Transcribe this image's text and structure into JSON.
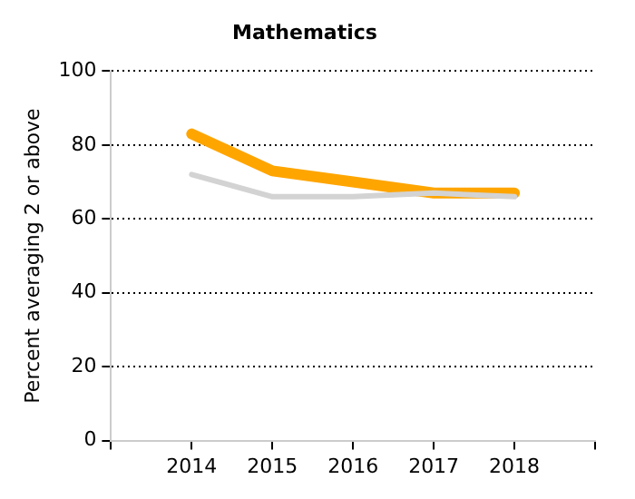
{
  "chart_data": {
    "type": "line",
    "title": "Mathematics",
    "ylabel": "Percent averaging 2 or above",
    "x": [
      2014,
      2015,
      2016,
      2017,
      2018
    ],
    "xlim": [
      2013,
      2019
    ],
    "xticks": [
      {
        "value": 2013,
        "label": null
      },
      2014,
      2015,
      2016,
      2017,
      2018,
      {
        "value": 2019,
        "label": null
      }
    ],
    "ylim": [
      0,
      100
    ],
    "yticks": [
      0,
      20,
      40,
      60,
      80,
      100
    ],
    "series": [
      {
        "color": "#d3d3d3",
        "values": [
          72,
          66,
          66,
          67,
          66
        ]
      },
      {
        "color": "#ffa500",
        "values": [
          83,
          73,
          70,
          67,
          67
        ]
      }
    ],
    "grid": "y",
    "legend": false,
    "marker": "none",
    "line_style": "solid"
  }
}
